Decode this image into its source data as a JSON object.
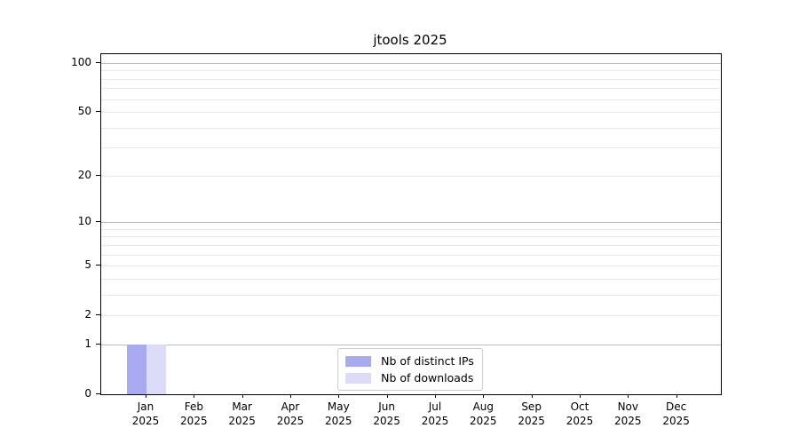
{
  "chart_data": {
    "type": "bar",
    "title": "jtools 2025",
    "months": [
      "Jan",
      "Feb",
      "Mar",
      "Apr",
      "May",
      "Jun",
      "Jul",
      "Aug",
      "Sep",
      "Oct",
      "Nov",
      "Dec"
    ],
    "year": "2025",
    "categories": [
      "Jan 2025",
      "Feb 2025",
      "Mar 2025",
      "Apr 2025",
      "May 2025",
      "Jun 2025",
      "Jul 2025",
      "Aug 2025",
      "Sep 2025",
      "Oct 2025",
      "Nov 2025",
      "Dec 2025"
    ],
    "series": [
      {
        "name": "Nb of distinct IPs",
        "color": "#a9a9f0",
        "values": [
          1,
          0,
          0,
          0,
          0,
          0,
          0,
          0,
          0,
          0,
          0,
          0
        ]
      },
      {
        "name": "Nb of downloads",
        "color": "#dcdcf8",
        "values": [
          1,
          0,
          0,
          0,
          0,
          0,
          0,
          0,
          0,
          0,
          0,
          0
        ]
      }
    ],
    "yscale": "log1p",
    "ylim": [
      0,
      113
    ],
    "yticks": [
      {
        "value": 0,
        "label": "0"
      },
      {
        "value": 1,
        "label": "1"
      },
      {
        "value": 2,
        "label": "2"
      },
      {
        "value": 5,
        "label": "5"
      },
      {
        "value": 10,
        "label": "10"
      },
      {
        "value": 20,
        "label": "20"
      },
      {
        "value": 50,
        "label": "50"
      },
      {
        "value": 100,
        "label": "100"
      }
    ],
    "gridlines_major": [
      1,
      10,
      100
    ],
    "gridlines_minor": [
      2,
      3,
      4,
      5,
      6,
      7,
      8,
      9,
      20,
      30,
      40,
      50,
      60,
      70,
      80,
      90
    ],
    "grid": true,
    "legend_position": "lower center",
    "colors": {
      "axis": "#000000",
      "grid_major": "#bdbdbd",
      "grid_minor": "#e9e9e9",
      "legend_border": "#cccccc",
      "text": "#000000"
    }
  }
}
